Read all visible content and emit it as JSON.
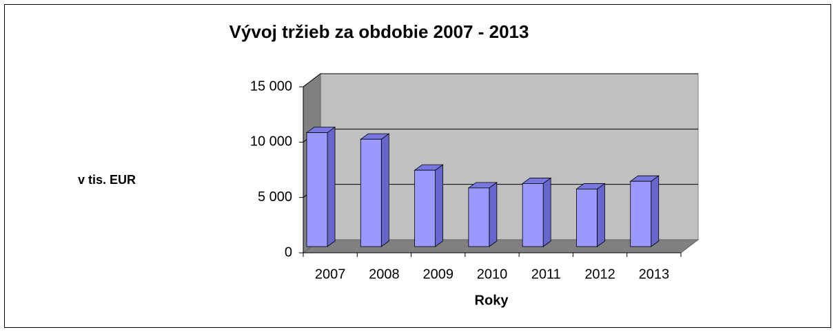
{
  "chart_data": {
    "type": "bar3d",
    "title": "Vývoj tržieb za obdobie 2007 - 2013",
    "xlabel": "Roky",
    "ylabel": "v tis. EUR",
    "categories": [
      "2007",
      "2008",
      "2009",
      "2010",
      "2011",
      "2012",
      "2013"
    ],
    "values": [
      10300,
      9700,
      6900,
      5300,
      5700,
      5200,
      5900
    ],
    "color": "#9999ff",
    "ylim": [
      0,
      15000
    ],
    "yticks": [
      0,
      {
        "value": 5000,
        "label": "5 000"
      },
      {
        "value": 10000,
        "label": "10 000"
      },
      {
        "value": 15000,
        "label": "15 000"
      }
    ],
    "grid": true
  }
}
